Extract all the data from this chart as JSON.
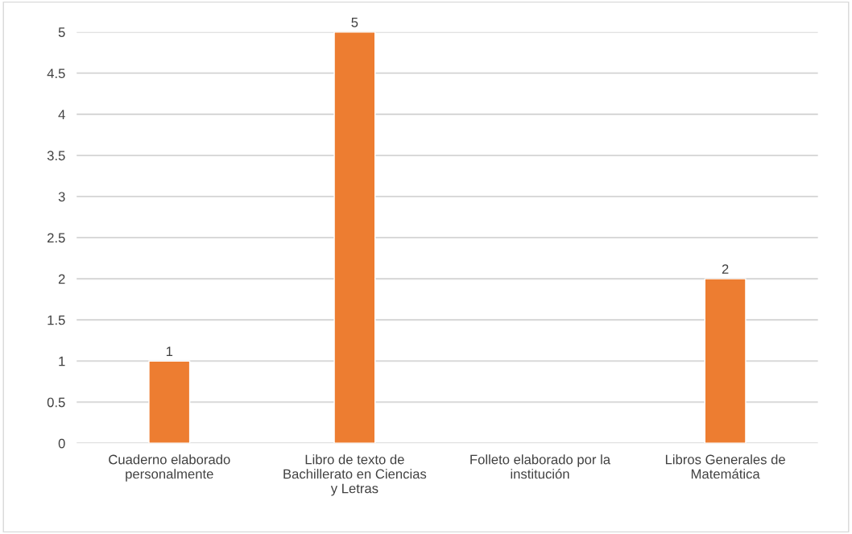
{
  "chart_data": {
    "type": "bar",
    "categories": [
      "Cuaderno elaborado personalmente",
      "Libro de texto de Bachillerato en Ciencias y Letras",
      "Folleto elaborado por la institución",
      "Libros Generales de Matemática"
    ],
    "values": [
      1,
      5,
      null,
      2
    ],
    "value_labels": [
      "1",
      "5",
      null,
      "2"
    ],
    "color": "#ed7d31",
    "ylim": [
      0,
      5
    ],
    "yticks": [
      0,
      0.5,
      1,
      1.5,
      2,
      2.5,
      3,
      3.5,
      4,
      4.5,
      5
    ],
    "grid": "y",
    "legend": false
  }
}
